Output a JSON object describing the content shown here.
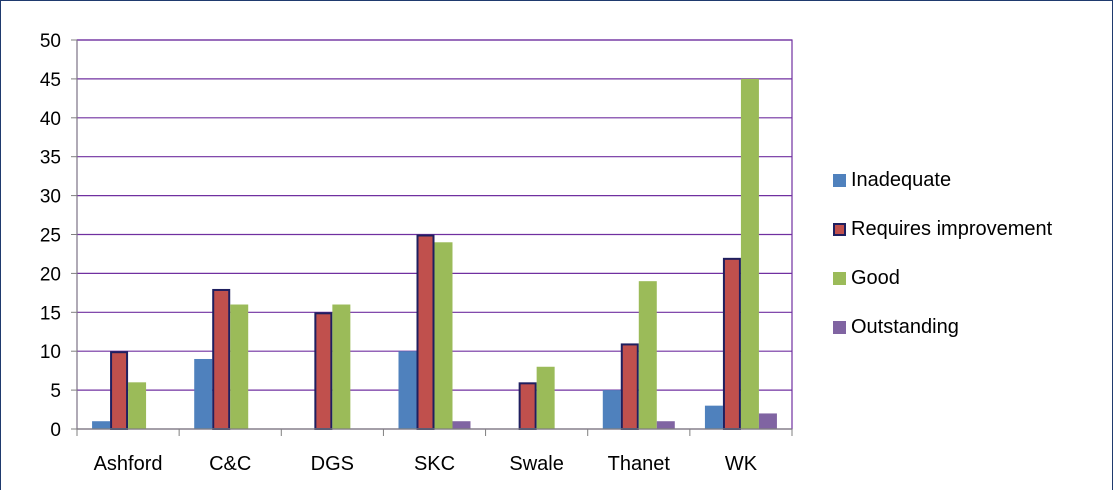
{
  "chart_data": {
    "type": "bar",
    "categories": [
      "Ashford",
      "C&C",
      "DGS",
      "SKC",
      "Swale",
      "Thanet",
      "WK"
    ],
    "series": [
      {
        "name": "Inadequate",
        "color": "#4f81bd",
        "values": [
          1,
          9,
          0,
          10,
          0,
          5,
          3
        ]
      },
      {
        "name": "Requires improvement",
        "color": "#c0504d",
        "outline": "#1f1f5f",
        "values": [
          10,
          18,
          15,
          25,
          6,
          11,
          22
        ]
      },
      {
        "name": "Good",
        "color": "#9bbb59",
        "values": [
          6,
          16,
          16,
          24,
          8,
          19,
          45
        ]
      },
      {
        "name": "Outstanding",
        "color": "#8064a2",
        "values": [
          0,
          0,
          0,
          1,
          0,
          1,
          2
        ]
      }
    ],
    "ylim": [
      0,
      50
    ],
    "yticks": [
      "0",
      "5",
      "10",
      "15",
      "20",
      "25",
      "30",
      "35",
      "40",
      "45",
      "50"
    ],
    "grid": true,
    "gridline_color": "#7030a0",
    "legend_position": "right",
    "title": "",
    "xlabel": "",
    "ylabel": ""
  }
}
